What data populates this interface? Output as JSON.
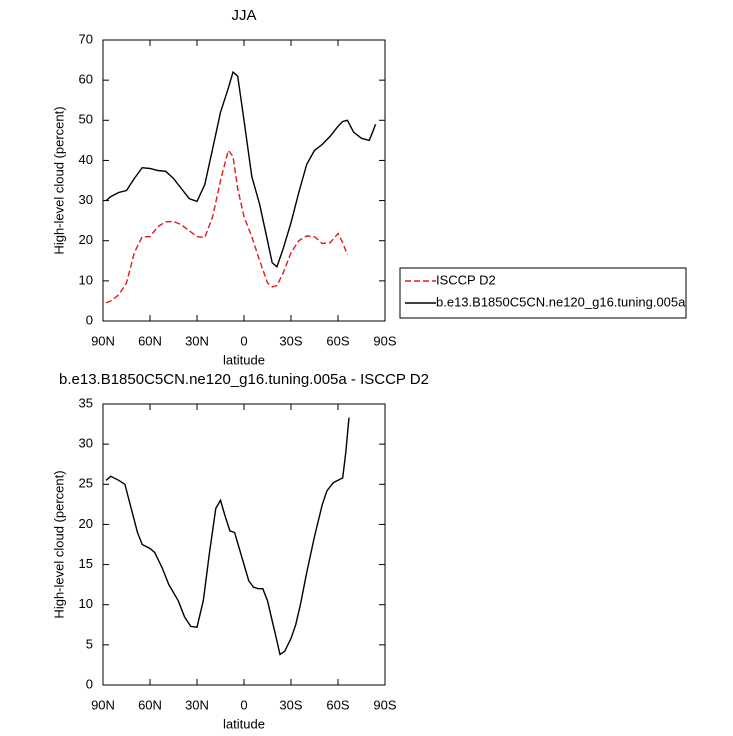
{
  "chart_data": [
    {
      "type": "line",
      "title": "JJA",
      "x_label": "latitude",
      "y_label": "High-level cloud (percent)",
      "xlim": [
        90,
        -90
      ],
      "ylim": [
        0,
        70
      ],
      "xticks": [
        {
          "value": 90,
          "label": "90N"
        },
        {
          "value": 60,
          "label": "60N"
        },
        {
          "value": 30,
          "label": "30N"
        },
        0,
        {
          "value": -30,
          "label": "30S"
        },
        {
          "value": -60,
          "label": "60S"
        },
        {
          "value": -90,
          "label": "90S"
        }
      ],
      "yticks": [
        0,
        10,
        20,
        30,
        40,
        50,
        60,
        70
      ],
      "legend": "right",
      "x": [
        88,
        85,
        80,
        75,
        70,
        65,
        60,
        55,
        50,
        45,
        40,
        35,
        30,
        25,
        20,
        15,
        10,
        7,
        4,
        0,
        -5,
        -10,
        -15,
        -18,
        -21,
        -25,
        -30,
        -35,
        -40,
        -45,
        -50,
        -55,
        -60,
        -63,
        -66,
        -70,
        -75,
        -80,
        -84
      ],
      "series": [
        {
          "name": "ISCCP D2",
          "color": "#e41a1c",
          "dashed": true,
          "values": [
            4.5,
            5,
            6.5,
            9.5,
            17,
            21,
            21,
            23.5,
            24.7,
            24.8,
            24,
            22.5,
            21,
            20.8,
            26,
            35,
            42.5,
            41,
            33,
            26,
            21,
            15,
            9.5,
            8.5,
            8.8,
            12,
            17,
            20,
            21.2,
            21,
            19.3,
            19.5,
            21.8,
            19.5,
            16.5,
            null,
            null,
            null,
            null
          ]
        },
        {
          "name": "b.e13.B1850C5CN.ne120_g16.tuning.005a",
          "color": "#000000",
          "dashed": false,
          "values": [
            30,
            31,
            32,
            32.5,
            35.5,
            38.2,
            38,
            37.5,
            37.3,
            35.5,
            33,
            30.5,
            29.8,
            34,
            43,
            52,
            58,
            62,
            61,
            50,
            36,
            29,
            20,
            14.5,
            13.5,
            18,
            24.5,
            32,
            39,
            42.5,
            44,
            46,
            48.5,
            49.7,
            50,
            47,
            45.5,
            45,
            49
          ]
        }
      ]
    },
    {
      "type": "line",
      "title": "b.e13.B1850C5CN.ne120_g16.tuning.005a - ISCCP D2",
      "x_label": "latitude",
      "y_label": "High-level cloud (percent)",
      "xlim": [
        90,
        -90
      ],
      "ylim": [
        0,
        35
      ],
      "xticks": [
        {
          "value": 90,
          "label": "90N"
        },
        {
          "value": 60,
          "label": "60N"
        },
        {
          "value": 30,
          "label": "30N"
        },
        0,
        {
          "value": -30,
          "label": "30S"
        },
        {
          "value": -60,
          "label": "60S"
        },
        {
          "value": -90,
          "label": "90S"
        }
      ],
      "yticks": [
        0,
        5,
        10,
        15,
        20,
        25,
        30,
        35
      ],
      "x": [
        88,
        85,
        80,
        76,
        72,
        68,
        65,
        60,
        57,
        52,
        48,
        42,
        38,
        34,
        30,
        26,
        22,
        18,
        15,
        12,
        9,
        6,
        3,
        0,
        -3,
        -6,
        -9,
        -12,
        -15,
        -18,
        -21,
        -23,
        -26,
        -30,
        -33,
        -36,
        -40,
        -45,
        -50,
        -53,
        -57,
        -60,
        -63,
        -65,
        -67
      ],
      "series": [
        {
          "color": "#000000",
          "dashed": false,
          "values": [
            25.5,
            26,
            25.5,
            25,
            22,
            19,
            17.5,
            17,
            16.5,
            14.5,
            12.5,
            10.5,
            8.5,
            7.3,
            7.2,
            10.5,
            16.5,
            22,
            23,
            21,
            19.2,
            19,
            17,
            15,
            13,
            12.2,
            12,
            12,
            10.5,
            8,
            5.5,
            3.8,
            4.2,
            5.8,
            7.5,
            10,
            14,
            18.5,
            22.5,
            24.2,
            25.2,
            25.5,
            25.8,
            29,
            33.3
          ]
        }
      ]
    }
  ]
}
